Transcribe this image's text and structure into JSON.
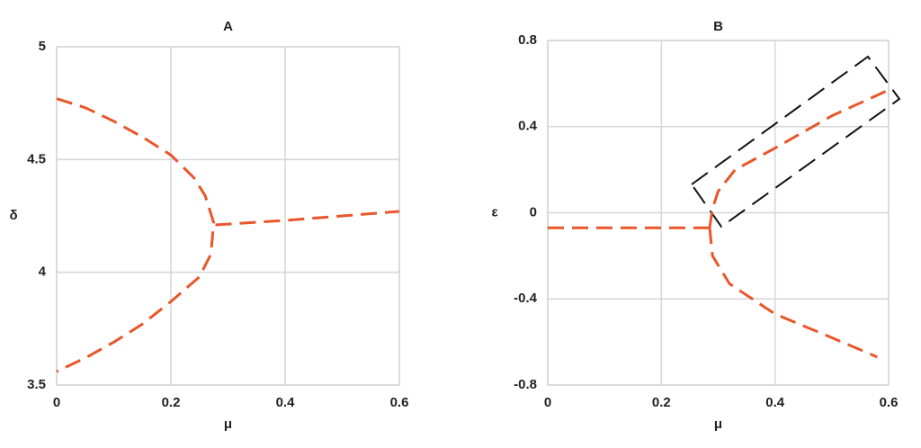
{
  "chart_data": [
    {
      "type": "line",
      "title": "A",
      "x_label": "μ",
      "y_label": "δ",
      "xlim": [
        0,
        0.6
      ],
      "xticks": [
        0,
        0.2,
        0.4,
        0.6
      ],
      "ylim": [
        3.5,
        5
      ],
      "yticks": [
        3.5,
        4,
        4.5,
        5
      ],
      "grid": true,
      "dashed": true,
      "series": [
        {
          "color": "#e8562a",
          "x": [
            0,
            0.05,
            0.1,
            0.15,
            0.2,
            0.24,
            0.26,
            0.275,
            0.27,
            0.25,
            0.2,
            0.15,
            0.1,
            0.05,
            0
          ],
          "values": [
            4.77,
            4.73,
            4.67,
            4.6,
            4.52,
            4.42,
            4.34,
            4.22,
            4.08,
            3.98,
            3.87,
            3.77,
            3.69,
            3.62,
            3.56
          ]
        },
        {
          "color": "#e8562a",
          "x": [
            0.278,
            0.4,
            0.5,
            0.6
          ],
          "values": [
            4.21,
            4.23,
            4.25,
            4.27
          ]
        }
      ]
    },
    {
      "type": "line",
      "title": "B",
      "x_label": "μ",
      "y_label": "ε",
      "xlim": [
        0,
        0.6
      ],
      "xticks": [
        0,
        0.2,
        0.4,
        0.6
      ],
      "ylim": [
        -0.8,
        0.8
      ],
      "yticks": [
        -0.8,
        -0.4,
        0,
        0.4,
        0.8
      ],
      "grid": true,
      "dashed": true,
      "series": [
        {
          "color": "#e8562a",
          "x": [
            0,
            0.285
          ],
          "values": [
            -0.07,
            -0.07
          ]
        },
        {
          "color": "#e8562a",
          "x": [
            0.285,
            0.29,
            0.3,
            0.33,
            0.4,
            0.5,
            0.6
          ],
          "values": [
            -0.07,
            0.02,
            0.1,
            0.2,
            0.3,
            0.45,
            0.57
          ]
        },
        {
          "color": "#e8562a",
          "x": [
            0.285,
            0.29,
            0.32,
            0.4,
            0.5,
            0.58
          ],
          "values": [
            -0.07,
            -0.2,
            -0.33,
            -0.47,
            -0.58,
            -0.67
          ]
        }
      ]
    }
  ]
}
